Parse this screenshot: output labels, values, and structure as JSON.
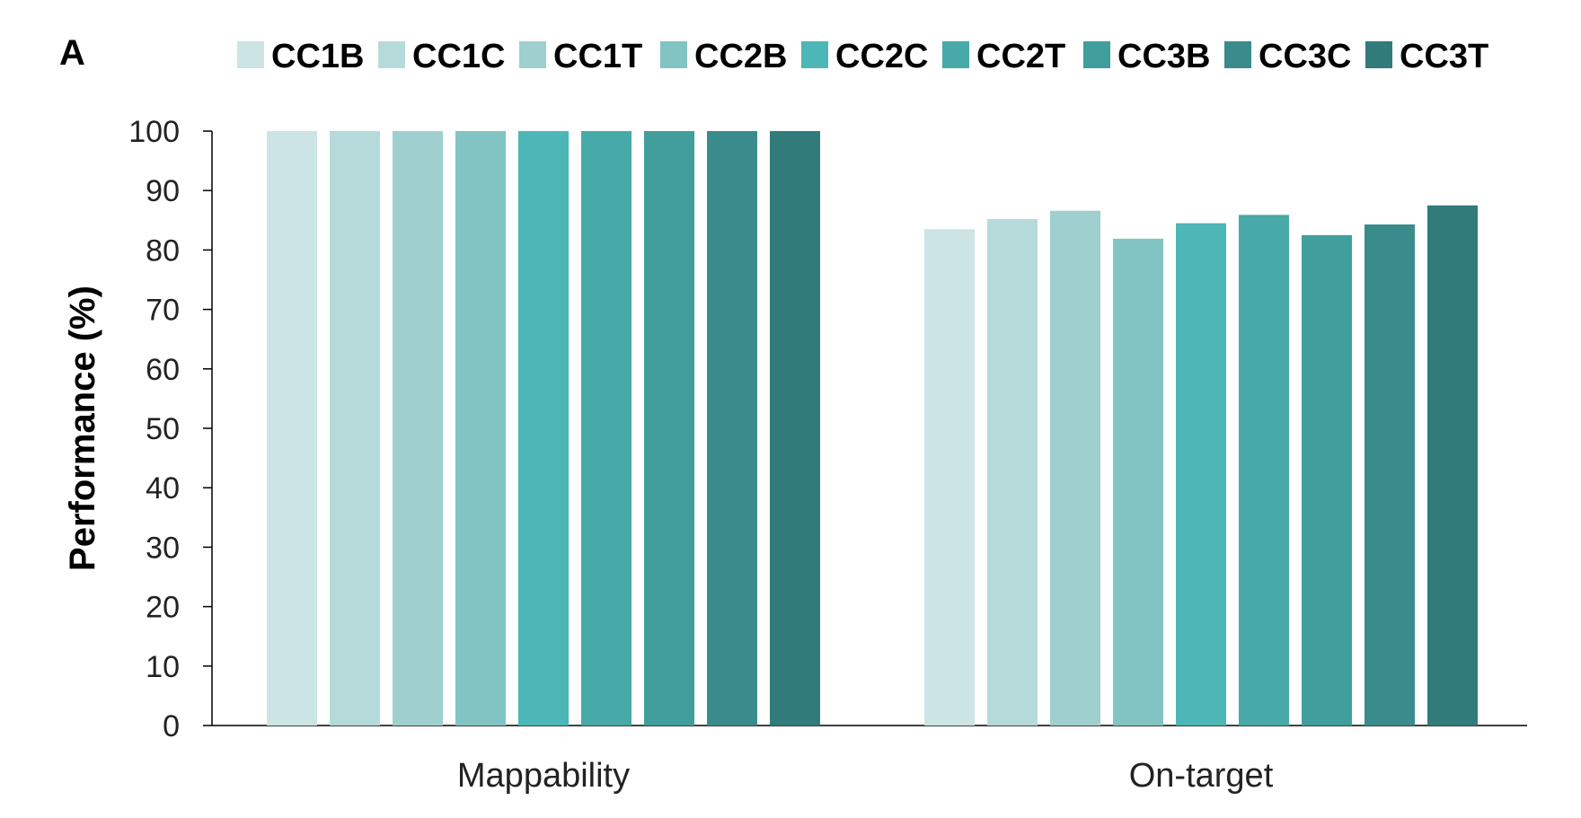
{
  "chart_data": {
    "type": "bar",
    "panel_label": "A",
    "title": "",
    "xlabel": "",
    "ylabel": "Performance (%)",
    "ylim": [
      0,
      100
    ],
    "yticks": [
      0,
      10,
      20,
      30,
      40,
      50,
      60,
      70,
      80,
      90,
      100
    ],
    "grid": false,
    "legend_position": "top",
    "categories": [
      "Mappability",
      "On-target"
    ],
    "series": [
      {
        "name": "CC1B",
        "color": "#cde4e4",
        "values": [
          100,
          83.5
        ]
      },
      {
        "name": "CC1C",
        "color": "#b6dada",
        "values": [
          100,
          85.2
        ]
      },
      {
        "name": "CC1T",
        "color": "#9fcfcf",
        "values": [
          100,
          86.6
        ]
      },
      {
        "name": "CC2B",
        "color": "#82c4c3",
        "values": [
          100,
          81.9
        ]
      },
      {
        "name": "CC2C",
        "color": "#4db6b6",
        "values": [
          100,
          84.5
        ]
      },
      {
        "name": "CC2T",
        "color": "#47a9a8",
        "values": [
          100,
          85.9
        ]
      },
      {
        "name": "CC3B",
        "color": "#409e9c",
        "values": [
          100,
          82.5
        ]
      },
      {
        "name": "CC3C",
        "color": "#3a8c8c",
        "values": [
          100,
          84.3
        ]
      },
      {
        "name": "CC3T",
        "color": "#317b7b",
        "values": [
          100,
          87.5
        ]
      }
    ]
  }
}
